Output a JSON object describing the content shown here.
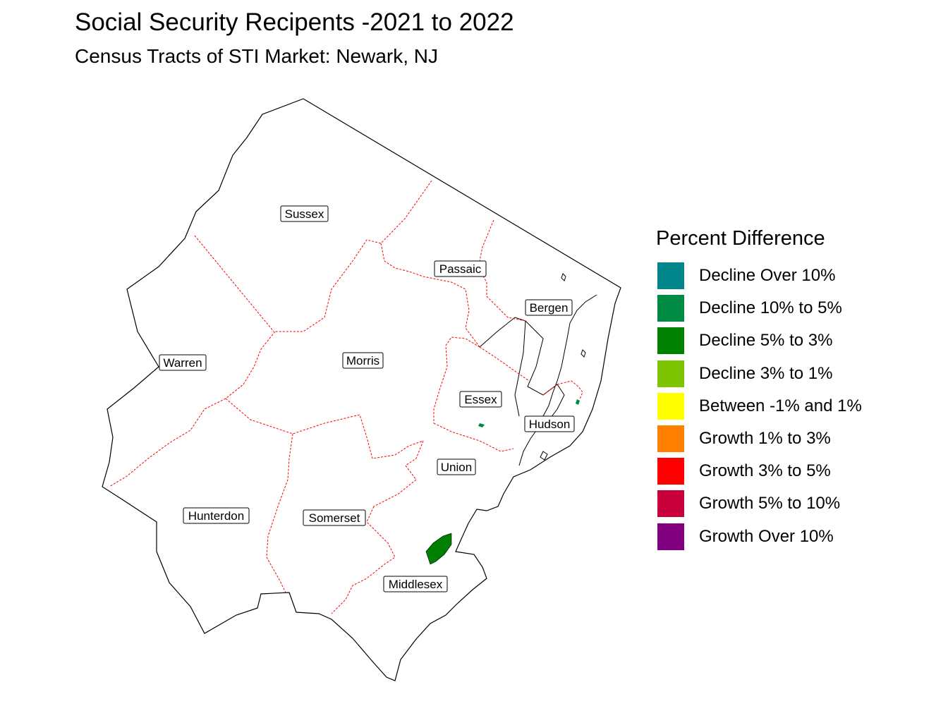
{
  "title": "Social Security Recipents -2021 to 2022",
  "subtitle": "Census Tracts of STI Market: Newark, NJ",
  "legend": {
    "title": "Percent Difference",
    "items": [
      {
        "label": "Decline Over 10%",
        "color": "#00868B"
      },
      {
        "label": "Decline 10% to 5%",
        "color": "#008B45"
      },
      {
        "label": "Decline 5% to 3%",
        "color": "#008000"
      },
      {
        "label": "Decline 3% to 1%",
        "color": "#7FC400"
      },
      {
        "label": "Between -1% and 1%",
        "color": "#FFFF00"
      },
      {
        "label": "Growth 1% to 3%",
        "color": "#FF7F00"
      },
      {
        "label": "Growth 3% to 5%",
        "color": "#FF0000"
      },
      {
        "label": "Growth 5% to 10%",
        "color": "#C8003C"
      },
      {
        "label": "Growth Over 10%",
        "color": "#800080"
      }
    ]
  },
  "counties": {
    "sussex": "Sussex",
    "passaic": "Passaic",
    "bergen": "Bergen",
    "warren": "Warren",
    "morris": "Morris",
    "essex": "Essex",
    "hudson": "Hudson",
    "union": "Union",
    "hunterdon": "Hunterdon",
    "somerset": "Somerset",
    "middlesex": "Middlesex"
  },
  "colors": {
    "outline": "#000000",
    "county_border": "#FF0000",
    "highlight_tract": "#008000"
  }
}
